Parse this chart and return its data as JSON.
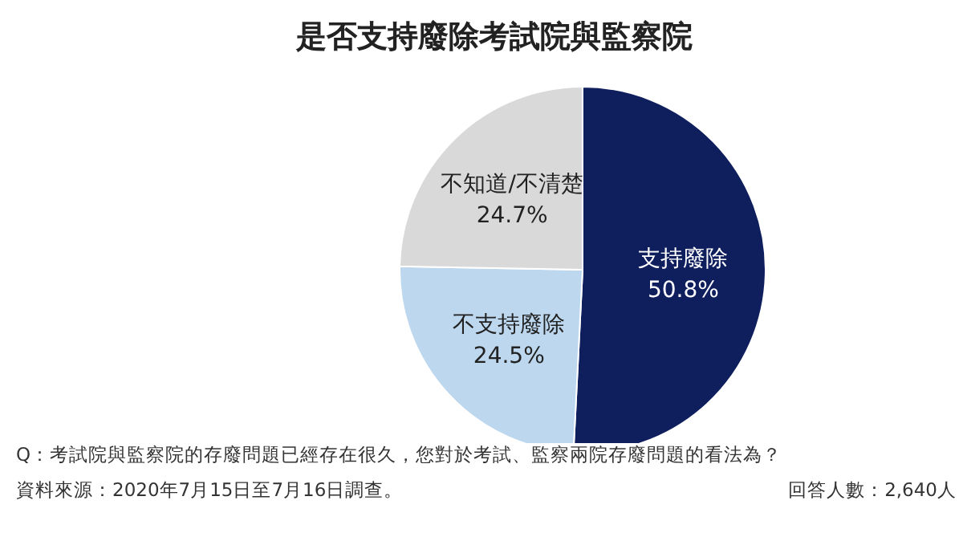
{
  "chart_data": {
    "type": "pie",
    "title": "是否支持廢除考試院與監察院",
    "categories": [
      "支持廢除",
      "不支持廢除",
      "不知道/不清楚"
    ],
    "values": [
      50.8,
      24.5,
      24.7
    ],
    "value_labels": [
      "50.8%",
      "24.5%",
      "24.7%"
    ],
    "colors": [
      "#0f1f5e",
      "#bdd7ee",
      "#d9d9d9"
    ],
    "legend": false,
    "annotations": [
      "Q：考試院與監察院的存廢問題已經存在很久，您對於考試、監察兩院存廢問題的看法為？",
      "資料來源：2020年7月15日至7月16日調查。",
      "回答人數：2,640人"
    ]
  }
}
